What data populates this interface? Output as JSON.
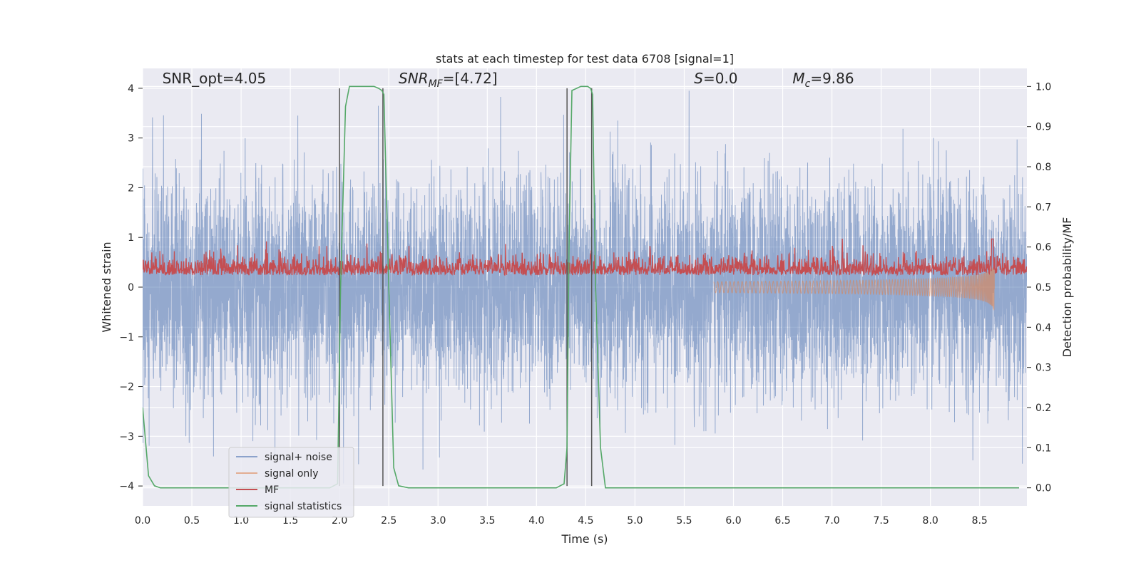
{
  "chart_data": {
    "type": "line",
    "title": "stats at each timestep for test data 6708 [signal=1]",
    "xlabel": "Time (s)",
    "ylabel": "Whitened strain",
    "y2label": "Detection probability/MF",
    "xlim": [
      0,
      8.98
    ],
    "ylim": [
      -4.4,
      4.4
    ],
    "y2lim": [
      -0.045,
      1.045
    ],
    "xticks": [
      0.0,
      0.5,
      1.0,
      1.5,
      2.0,
      2.5,
      3.0,
      3.5,
      4.0,
      4.5,
      5.0,
      5.5,
      6.0,
      6.5,
      7.0,
      7.5,
      8.0,
      8.5
    ],
    "xtick_labels": [
      "0.0",
      "0.5",
      "1.0",
      "1.5",
      "2.0",
      "2.5",
      "3.0",
      "3.5",
      "4.0",
      "4.5",
      "5.0",
      "5.5",
      "6.0",
      "6.5",
      "7.0",
      "7.5",
      "8.0",
      "8.5"
    ],
    "yticks": [
      -4,
      -3,
      -2,
      -1,
      0,
      1,
      2,
      3,
      4
    ],
    "ytick_labels": [
      "−4",
      "−3",
      "−2",
      "−1",
      "0",
      "1",
      "2",
      "3",
      "4"
    ],
    "y2ticks": [
      0.0,
      0.1,
      0.2,
      0.3,
      0.4,
      0.5,
      0.6,
      0.7,
      0.8,
      0.9,
      1.0
    ],
    "y2tick_labels": [
      "0.0",
      "0.1",
      "0.2",
      "0.3",
      "0.4",
      "0.5",
      "0.6",
      "0.7",
      "0.8",
      "0.9",
      "1.0"
    ],
    "grid": true,
    "legend_position": "lower-left",
    "annotations": [
      {
        "text": "SNR_opt=4.05",
        "at_x": 0.2,
        "at_y": 4.1
      },
      {
        "text": "SNR_MF=[4.72]",
        "at_x": 2.6,
        "at_y": 4.1
      },
      {
        "text": "S=0.0",
        "at_x": 5.6,
        "at_y": 4.1
      },
      {
        "text": "M_c=9.86",
        "at_x": 6.6,
        "at_y": 4.1
      }
    ],
    "vlines": [
      2.0,
      2.44,
      4.31,
      4.56
    ],
    "series": [
      {
        "name": "signal+ noise",
        "color": "#4c72b0",
        "description": "whitened strain, Gaussian noise approx std 1, values within about -4 to 4"
      },
      {
        "name": "signal only",
        "color": "#dd8452",
        "chirp_start_time": 5.8,
        "chirp_end_time": 8.65,
        "peak_amplitude": 0.5
      },
      {
        "name": "MF",
        "color": "#c44e52",
        "axis": "right",
        "baseline": 0.5,
        "typical_range": [
          0.5,
          0.6
        ]
      },
      {
        "name": "signal statistics",
        "color": "#55a868",
        "axis": "right",
        "x": [
          0.0,
          0.06,
          0.12,
          0.18,
          0.3,
          1.9,
          1.98,
          2.01,
          2.06,
          2.1,
          2.35,
          2.4,
          2.43,
          2.45,
          2.5,
          2.55,
          2.6,
          2.7,
          4.2,
          4.28,
          4.31,
          4.33,
          4.36,
          4.45,
          4.52,
          4.55,
          4.57,
          4.6,
          4.65,
          4.7,
          8.9
        ],
        "y": [
          0.2,
          0.03,
          0.005,
          0.0,
          0.0,
          0.0,
          0.01,
          0.5,
          0.95,
          1.0,
          1.0,
          0.995,
          0.99,
          0.98,
          0.5,
          0.05,
          0.005,
          0.0,
          0.0,
          0.01,
          0.1,
          0.6,
          0.99,
          1.0,
          1.0,
          0.995,
          0.98,
          0.5,
          0.1,
          0.0,
          0.0
        ]
      }
    ]
  }
}
